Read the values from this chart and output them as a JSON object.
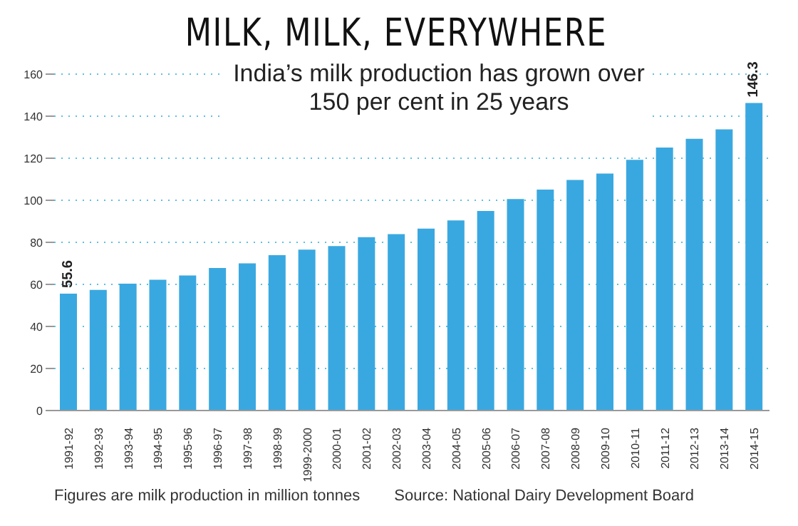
{
  "chart_data": {
    "type": "bar",
    "title": "MILK, MILK, EVERYWHERE",
    "subtitle": "India’s milk production has grown over 150 per cent in 25 years",
    "categories": [
      "1991-92",
      "1992-93",
      "1993-94",
      "1994-95",
      "1995-96",
      "1996-97",
      "1997-98",
      "1998-99",
      "1999-2000",
      "2000-01",
      "2001-02",
      "2002-03",
      "2003-04",
      "2004-05",
      "2005-06",
      "2006-07",
      "2007-08",
      "2008-09",
      "2009-10",
      "2010-11",
      "2011-12",
      "2012-13",
      "2013-14",
      "2014-15"
    ],
    "values": [
      55.6,
      57.4,
      60.3,
      62.2,
      64.2,
      67.8,
      70,
      73.9,
      76.5,
      78.2,
      82.5,
      83.9,
      86.5,
      90.4,
      94.9,
      100.6,
      105.1,
      109.7,
      112.7,
      119.2,
      125.1,
      129.2,
      133.7,
      146.3
    ],
    "value_labels": [
      "55.6",
      null,
      null,
      null,
      null,
      null,
      null,
      null,
      null,
      null,
      null,
      null,
      null,
      null,
      null,
      null,
      null,
      null,
      null,
      null,
      null,
      null,
      null,
      "146.3"
    ],
    "color": "#3aa8e0",
    "ylim": [
      0,
      160
    ],
    "yticks": [
      0,
      20,
      40,
      60,
      80,
      100,
      120,
      140,
      160
    ],
    "grid": "y",
    "annotations": [
      "Figures are milk production in million tonnes",
      "Source: National Dairy Development Board"
    ]
  }
}
